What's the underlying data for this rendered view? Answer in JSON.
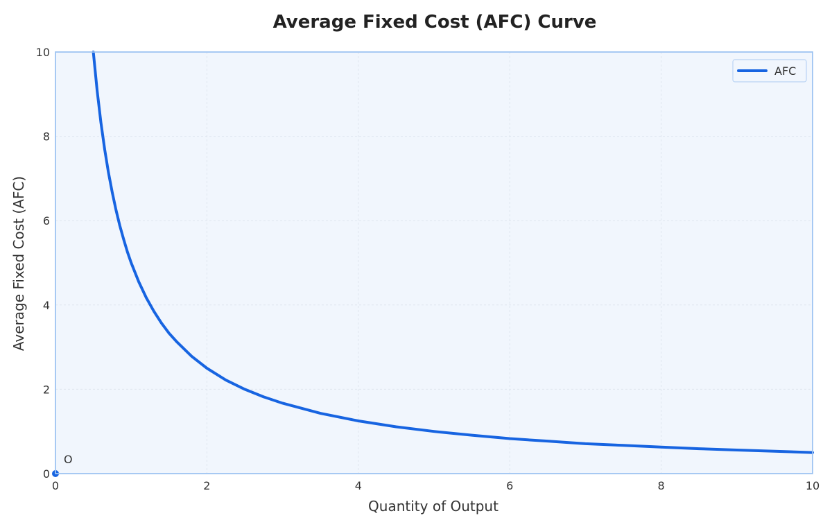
{
  "chart_data": {
    "type": "line",
    "title": "Average Fixed Cost (AFC) Curve",
    "xlabel": "Quantity of Output",
    "ylabel": "Average Fixed Cost (AFC)",
    "xlim": [
      0,
      10
    ],
    "ylim": [
      0,
      10
    ],
    "xticks": [
      0,
      2,
      4,
      6,
      8,
      10
    ],
    "yticks": [
      0,
      2,
      4,
      6,
      8,
      10
    ],
    "xtick_labels": [
      "0",
      "2",
      "4",
      "6",
      "8",
      "10"
    ],
    "ytick_labels": [
      "0",
      "2",
      "4",
      "6",
      "8",
      "10"
    ],
    "grid": true,
    "legend_position": "top-right",
    "series": [
      {
        "name": "AFC",
        "color": "#1764e1",
        "x": [
          0.5,
          0.55,
          0.6,
          0.65,
          0.7,
          0.75,
          0.8,
          0.85,
          0.9,
          0.95,
          1.0,
          1.1,
          1.2,
          1.3,
          1.4,
          1.5,
          1.6,
          1.8,
          2.0,
          2.25,
          2.5,
          2.75,
          3.0,
          3.5,
          4.0,
          4.5,
          5.0,
          5.5,
          6.0,
          6.5,
          7.0,
          7.5,
          8.0,
          8.5,
          9.0,
          9.5,
          10.0
        ],
        "y": [
          10.0,
          9.09,
          8.33,
          7.69,
          7.14,
          6.67,
          6.25,
          5.88,
          5.56,
          5.26,
          5.0,
          4.55,
          4.17,
          3.85,
          3.57,
          3.33,
          3.13,
          2.78,
          2.5,
          2.22,
          2.0,
          1.82,
          1.67,
          1.43,
          1.25,
          1.11,
          1.0,
          0.91,
          0.83,
          0.77,
          0.71,
          0.67,
          0.63,
          0.59,
          0.56,
          0.53,
          0.5
        ]
      }
    ],
    "points": [
      {
        "label": "O",
        "x": 0,
        "y": 0
      }
    ],
    "colors": {
      "plot_background": "#f1f6fd",
      "plot_border": "#9ec4f2",
      "grid": "#dfe6ef",
      "line": "#1764e1"
    }
  }
}
